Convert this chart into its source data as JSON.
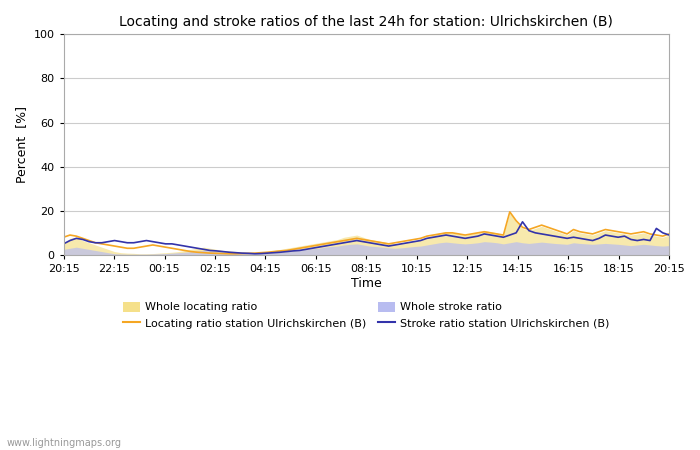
{
  "title": "Locating and stroke ratios of the last 24h for station: Ulrichskirchen (B)",
  "ylabel": "Percent  [%]",
  "xlabel": "Time",
  "xlim": [
    0,
    96
  ],
  "ylim": [
    0,
    100
  ],
  "yticks": [
    0,
    20,
    40,
    60,
    80,
    100
  ],
  "xtick_labels": [
    "20:15",
    "22:15",
    "00:15",
    "02:15",
    "04:15",
    "06:15",
    "08:15",
    "10:15",
    "12:15",
    "14:15",
    "16:15",
    "18:15",
    "20:15"
  ],
  "background_color": "#ffffff",
  "plot_bg_color": "#ffffff",
  "grid_color": "#cccccc",
  "watermark": "www.lightningmaps.org",
  "whole_locating_color": "#f5e08a",
  "whole_stroke_color": "#b8bcf0",
  "locating_station_color": "#f5a623",
  "stroke_station_color": "#3333aa",
  "locating_fill_alpha": 0.5,
  "stroke_fill_alpha": 0.5,
  "whole_locating_ratio": [
    5.0,
    7.5,
    8.0,
    6.5,
    5.5,
    4.5,
    3.5,
    2.5,
    1.5,
    1.0,
    0.8,
    0.7,
    0.5,
    0.5,
    0.6,
    0.8,
    1.0,
    1.2,
    1.5,
    2.0,
    2.5,
    3.0,
    3.5,
    3.0,
    2.5,
    2.0,
    1.8,
    1.5,
    1.3,
    1.1,
    1.0,
    1.2,
    1.5,
    2.0,
    2.5,
    3.0,
    3.5,
    4.0,
    4.5,
    5.0,
    5.5,
    6.0,
    6.5,
    7.0,
    8.0,
    8.5,
    9.0,
    8.0,
    7.0,
    6.5,
    6.0,
    5.5,
    5.0,
    5.5,
    6.0,
    6.5,
    7.0,
    8.0,
    9.0,
    10.0,
    10.5,
    10.0,
    9.5,
    9.0,
    9.5,
    10.0,
    11.0,
    10.5,
    10.0,
    9.0,
    19.0,
    15.0,
    12.0,
    11.0,
    12.0,
    13.0,
    12.0,
    11.0,
    10.0,
    9.0,
    11.0,
    10.0,
    9.5,
    9.0,
    10.0,
    11.0,
    10.5,
    10.0,
    9.5,
    9.0,
    9.5,
    10.0,
    9.0,
    8.5,
    8.0,
    9.0
  ],
  "whole_stroke_ratio": [
    2.5,
    3.0,
    3.5,
    3.0,
    2.5,
    2.0,
    1.5,
    1.0,
    0.5,
    0.4,
    0.3,
    0.3,
    0.3,
    0.3,
    0.4,
    0.5,
    0.6,
    0.8,
    1.0,
    1.2,
    1.5,
    1.8,
    2.0,
    1.8,
    1.5,
    1.2,
    1.0,
    0.9,
    0.8,
    0.7,
    0.6,
    0.7,
    0.8,
    1.0,
    1.2,
    1.5,
    1.8,
    2.0,
    2.5,
    2.8,
    3.0,
    3.5,
    3.8,
    4.0,
    4.5,
    4.8,
    5.0,
    4.5,
    4.0,
    3.8,
    3.5,
    3.2,
    3.0,
    3.2,
    3.5,
    3.8,
    4.0,
    4.5,
    5.0,
    5.5,
    5.8,
    5.5,
    5.2,
    5.0,
    5.2,
    5.5,
    6.0,
    5.8,
    5.5,
    5.0,
    5.5,
    6.0,
    5.5,
    5.2,
    5.5,
    5.8,
    5.5,
    5.2,
    5.0,
    4.8,
    5.5,
    5.2,
    5.0,
    4.8,
    5.0,
    5.2,
    5.0,
    4.8,
    4.5,
    4.2,
    4.5,
    4.8,
    4.5,
    4.2,
    4.0,
    4.2
  ],
  "locating_station_ratio": [
    8.0,
    9.0,
    8.5,
    7.5,
    6.5,
    5.5,
    5.0,
    4.5,
    4.0,
    3.5,
    3.0,
    3.0,
    3.5,
    4.0,
    4.5,
    4.0,
    3.5,
    3.0,
    2.5,
    2.0,
    1.5,
    1.2,
    1.0,
    0.8,
    0.7,
    0.6,
    0.5,
    0.5,
    0.6,
    0.7,
    0.8,
    1.0,
    1.2,
    1.5,
    1.8,
    2.0,
    2.5,
    3.0,
    3.5,
    4.0,
    4.5,
    5.0,
    5.5,
    6.0,
    6.5,
    7.0,
    7.5,
    7.0,
    6.5,
    6.0,
    5.5,
    5.0,
    5.5,
    6.0,
    6.5,
    7.0,
    7.5,
    8.5,
    9.0,
    9.5,
    10.0,
    10.0,
    9.5,
    9.0,
    9.5,
    10.0,
    10.5,
    10.0,
    9.5,
    9.0,
    19.5,
    15.5,
    12.5,
    11.5,
    12.5,
    13.5,
    12.5,
    11.5,
    10.5,
    9.5,
    11.5,
    10.5,
    10.0,
    9.5,
    10.5,
    11.5,
    11.0,
    10.5,
    10.0,
    9.5,
    10.0,
    10.5,
    9.5,
    9.0,
    8.5,
    9.5
  ],
  "stroke_station_ratio": [
    5.0,
    6.5,
    7.5,
    7.0,
    6.0,
    5.5,
    5.5,
    6.0,
    6.5,
    6.0,
    5.5,
    5.5,
    6.0,
    6.5,
    6.0,
    5.5,
    5.0,
    5.0,
    4.5,
    4.0,
    3.5,
    3.0,
    2.5,
    2.0,
    1.8,
    1.5,
    1.2,
    1.0,
    0.8,
    0.7,
    0.5,
    0.6,
    0.8,
    1.0,
    1.2,
    1.5,
    1.8,
    2.0,
    2.5,
    3.0,
    3.5,
    4.0,
    4.5,
    5.0,
    5.5,
    6.0,
    6.5,
    6.0,
    5.5,
    5.0,
    4.5,
    4.0,
    4.5,
    5.0,
    5.5,
    6.0,
    6.5,
    7.5,
    8.0,
    8.5,
    9.0,
    8.5,
    8.0,
    7.5,
    8.0,
    8.5,
    9.5,
    9.0,
    8.5,
    8.0,
    9.0,
    10.0,
    15.0,
    11.0,
    10.0,
    9.5,
    9.0,
    8.5,
    8.0,
    7.5,
    8.0,
    7.5,
    7.0,
    6.5,
    7.5,
    9.0,
    8.5,
    8.0,
    8.5,
    7.0,
    6.5,
    7.0,
    6.5,
    12.0,
    10.0,
    9.0
  ]
}
